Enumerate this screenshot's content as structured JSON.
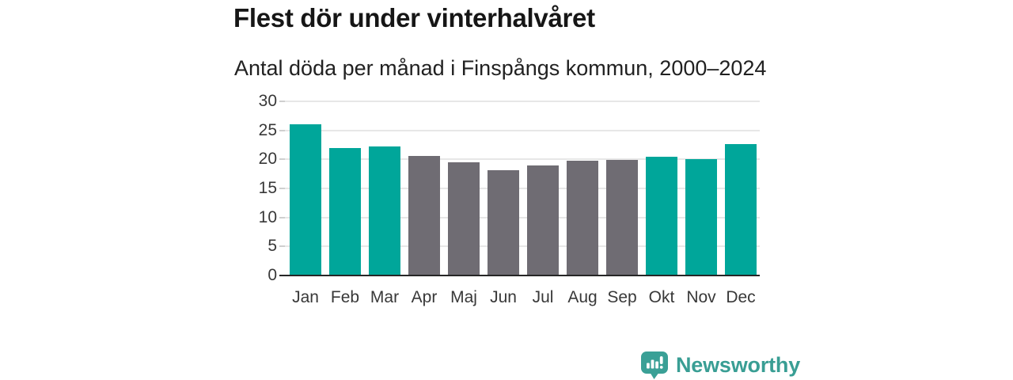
{
  "header": {
    "title": "Flest dör under vinterhalvåret",
    "subtitle": "Antal döda per månad i Finspångs kommun, 2000–2024"
  },
  "chart_data": {
    "type": "bar",
    "title": "Flest dör under vinterhalvåret",
    "subtitle": "Antal döda per månad i Finspångs kommun, 2000–2024",
    "categories": [
      "Jan",
      "Feb",
      "Mar",
      "Apr",
      "Maj",
      "Jun",
      "Jul",
      "Aug",
      "Sep",
      "Okt",
      "Nov",
      "Dec"
    ],
    "values": [
      26.0,
      21.9,
      22.2,
      20.6,
      19.5,
      18.2,
      19.0,
      19.8,
      19.9,
      20.5,
      20.0,
      22.7
    ],
    "bar_groups": [
      "winter",
      "winter",
      "winter",
      "summer",
      "summer",
      "summer",
      "summer",
      "summer",
      "summer",
      "winter",
      "winter",
      "winter"
    ],
    "palette": {
      "winter": "#00a69a",
      "summer": "#6f6c73"
    },
    "xlabel": "",
    "ylabel": "",
    "ylim": [
      0,
      30
    ],
    "yticks": [
      0,
      5,
      10,
      15,
      20,
      25,
      30
    ],
    "grid": true,
    "legend": "none"
  },
  "colors": {
    "background": "#ffffff",
    "title_text": "#161616",
    "subtitle_text": "#212121",
    "axis_text": "#383838",
    "gridline": "#e7e7e7",
    "axis_line": "#262626",
    "tick": "#cfcfcf",
    "brand_teal": "#399e94"
  },
  "footer": {
    "brand_name": "Newsworthy",
    "brand_icon": "newsworthy-speech-bubble-bar-chart-icon"
  }
}
